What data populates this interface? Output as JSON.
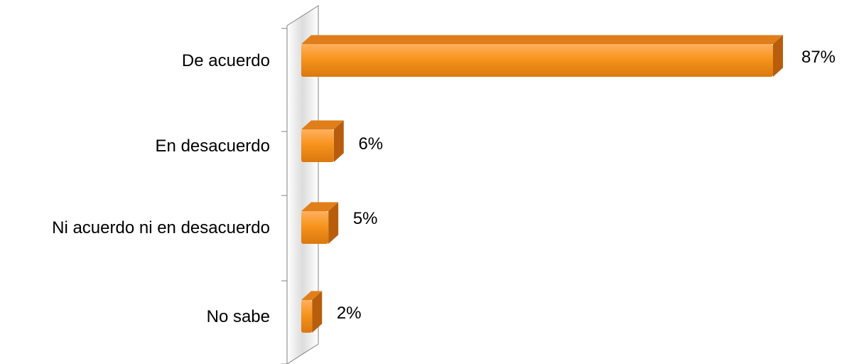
{
  "chart_data": {
    "type": "bar",
    "orientation": "horizontal",
    "categories": [
      "De acuerdo",
      "En desacuerdo",
      "Ni acuerdo ni en desacuerdo",
      "No sabe"
    ],
    "values": [
      87,
      6,
      5,
      2
    ],
    "value_labels": [
      "87%",
      "6%",
      "5%",
      "2%"
    ],
    "xlim": [
      0,
      87
    ],
    "grid": false,
    "legend": "none",
    "colors": {
      "bar_front": "#f7941d",
      "bar_highlight": "#ffb060",
      "bar_top": "#e07f1a",
      "bar_side": "#b85d0c",
      "axis": "#808080"
    }
  }
}
